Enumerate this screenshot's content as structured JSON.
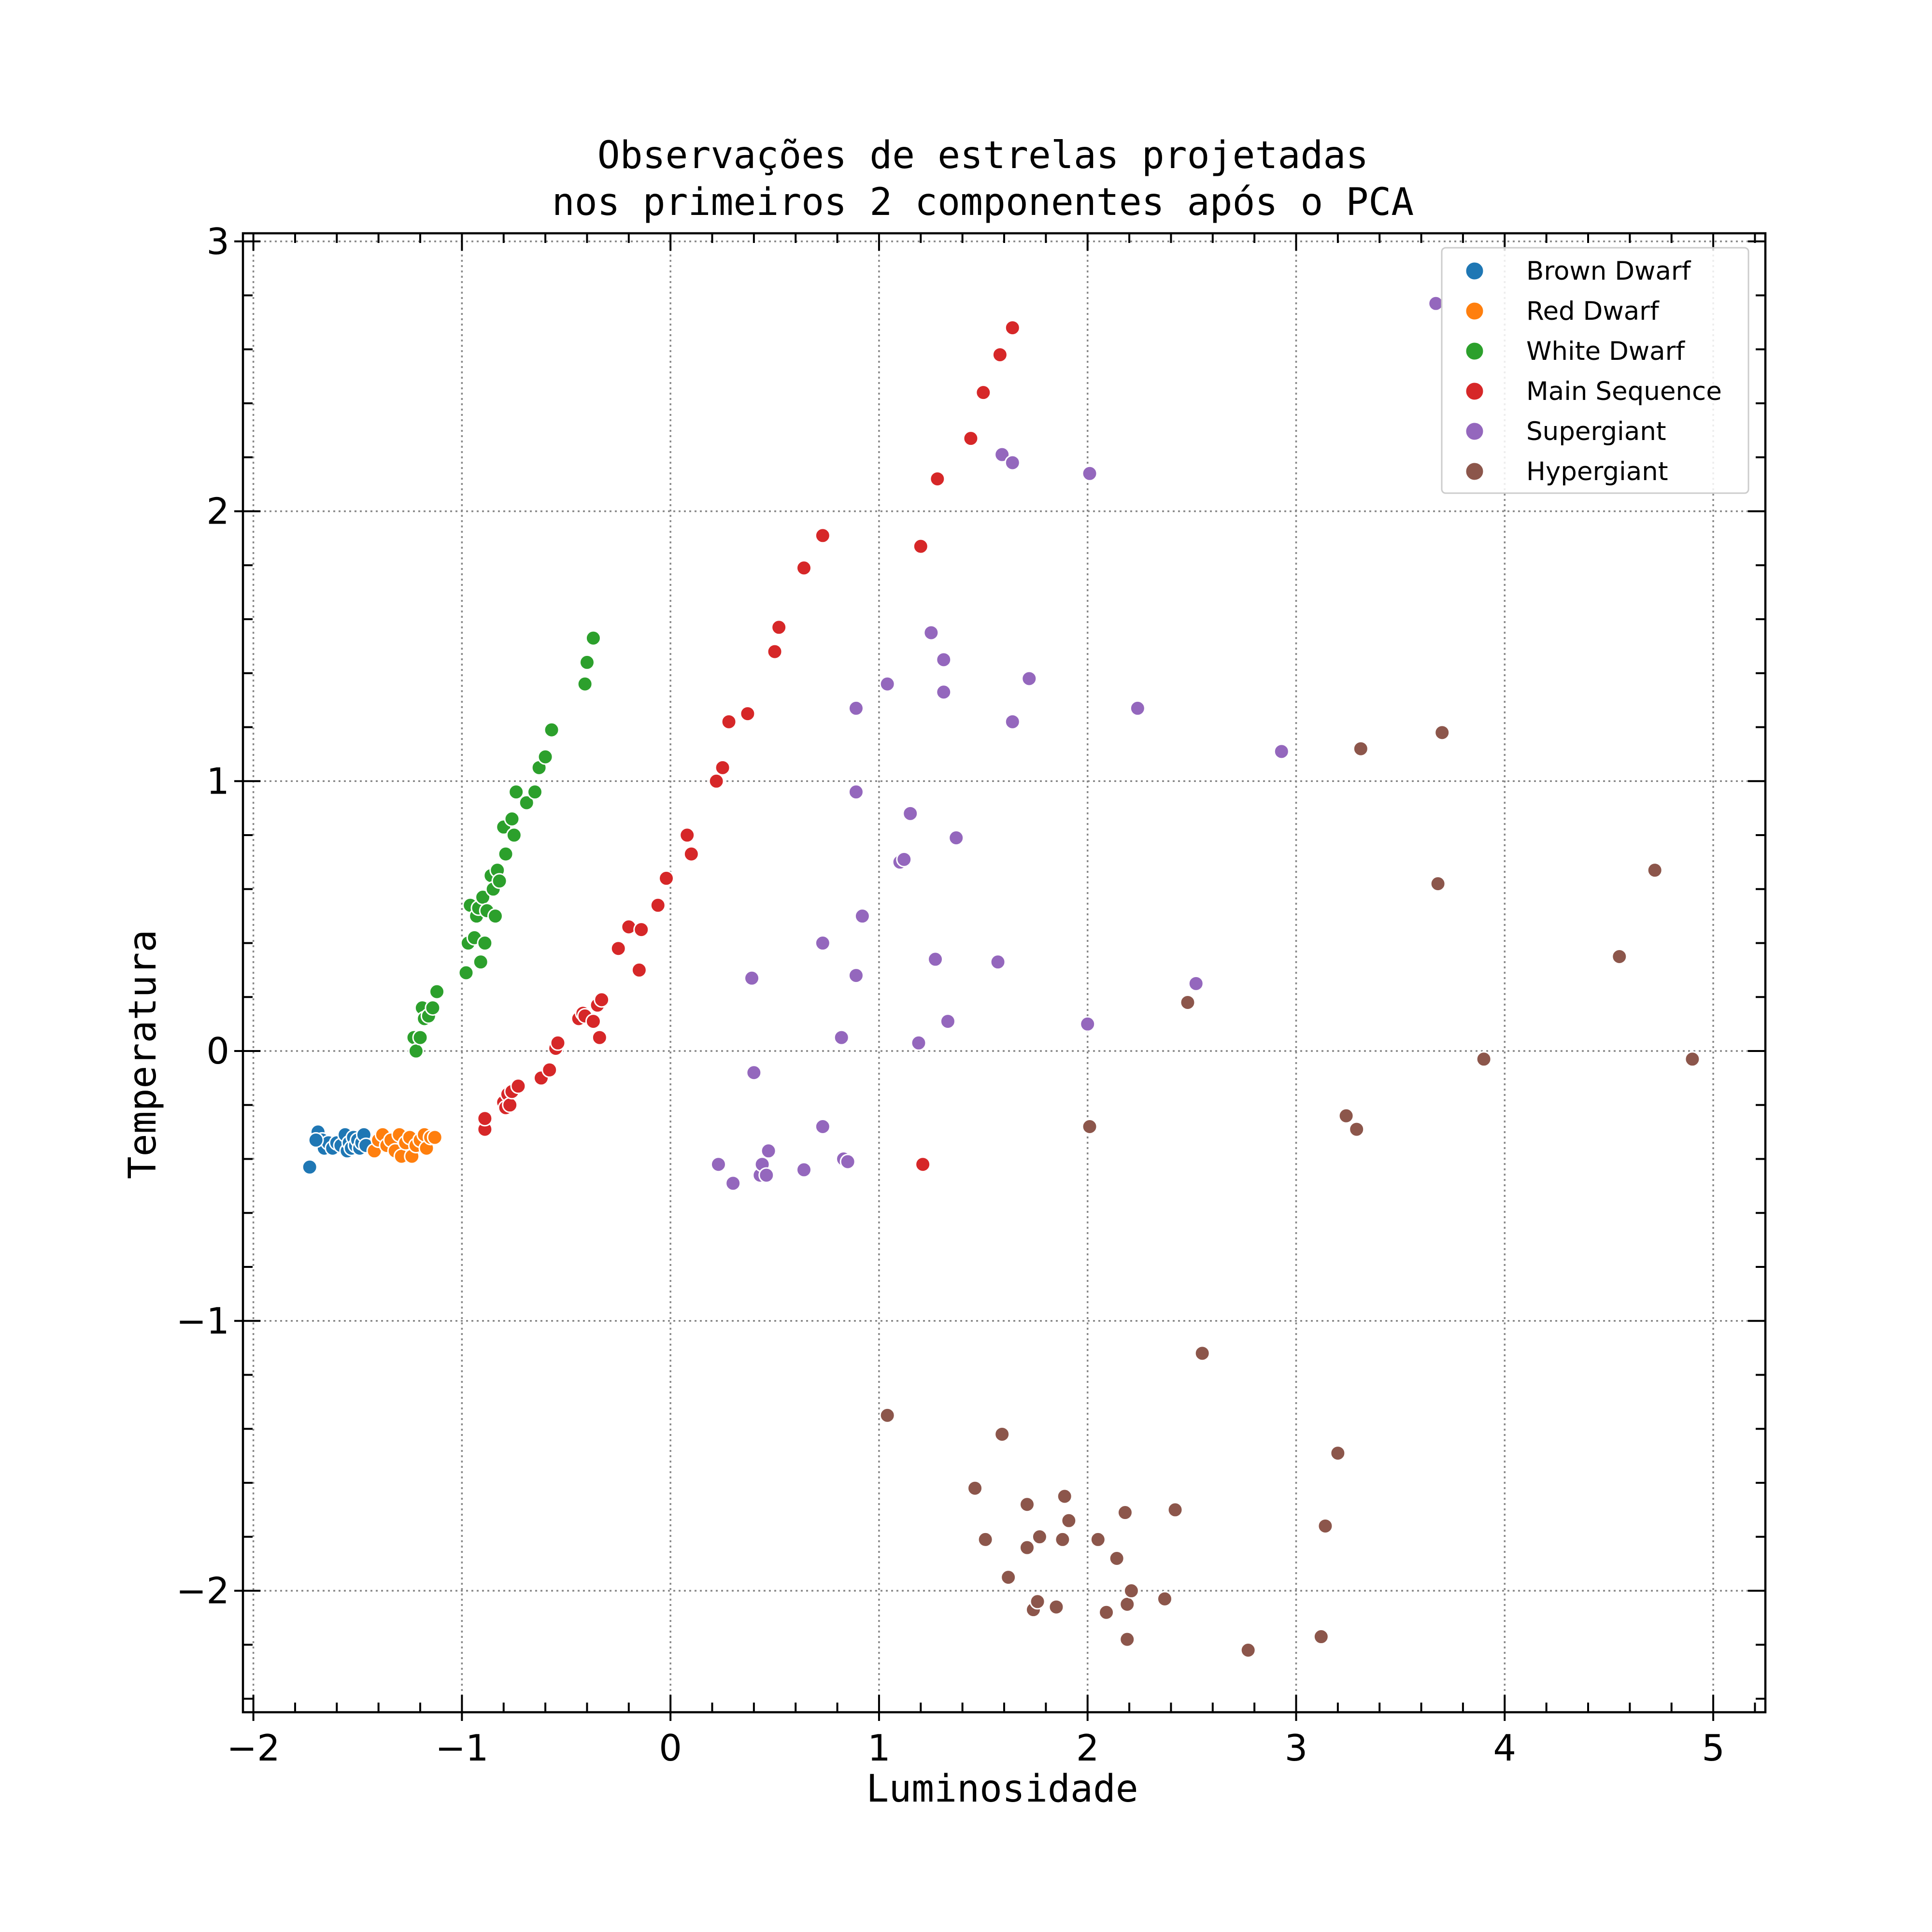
{
  "chart_data": {
    "type": "scatter",
    "title": "Observações de estrelas projetadas\nnos primeiros 2 componentes após o PCA",
    "xlabel": "Luminosidade",
    "ylabel": "Temperatura",
    "xlim": [
      -2.05,
      5.25
    ],
    "ylim": [
      -2.45,
      3.03
    ],
    "xticks": [
      -2,
      -1,
      0,
      1,
      2,
      3,
      4,
      5
    ],
    "xtick_labels": [
      "−2",
      "−1",
      "0",
      "1",
      "2",
      "3",
      "4",
      "5"
    ],
    "yticks": [
      -2,
      -1,
      0,
      1,
      2,
      3
    ],
    "ytick_labels": [
      "−2",
      "−1",
      "0",
      "1",
      "2",
      "3"
    ],
    "grid": true,
    "legend_position": "top-right",
    "series": [
      {
        "name": "Brown Dwarf",
        "color": "#1f77b4",
        "points": [
          [
            -1.73,
            -0.43
          ],
          [
            -1.69,
            -0.3
          ],
          [
            -1.67,
            -0.33
          ],
          [
            -1.66,
            -0.36
          ],
          [
            -1.64,
            -0.34
          ],
          [
            -1.62,
            -0.36
          ],
          [
            -1.6,
            -0.34
          ],
          [
            -1.58,
            -0.35
          ],
          [
            -1.56,
            -0.31
          ],
          [
            -1.55,
            -0.37
          ],
          [
            -1.54,
            -0.34
          ],
          [
            -1.53,
            -0.36
          ],
          [
            -1.52,
            -0.32
          ],
          [
            -1.51,
            -0.35
          ],
          [
            -1.5,
            -0.33
          ],
          [
            -1.49,
            -0.36
          ],
          [
            -1.48,
            -0.34
          ],
          [
            -1.47,
            -0.31
          ],
          [
            -1.46,
            -0.35
          ],
          [
            -1.7,
            -0.33
          ]
        ]
      },
      {
        "name": "Red Dwarf",
        "color": "#ff7f0e",
        "points": [
          [
            -1.42,
            -0.37
          ],
          [
            -1.4,
            -0.33
          ],
          [
            -1.38,
            -0.31
          ],
          [
            -1.36,
            -0.35
          ],
          [
            -1.34,
            -0.33
          ],
          [
            -1.32,
            -0.37
          ],
          [
            -1.3,
            -0.31
          ],
          [
            -1.29,
            -0.39
          ],
          [
            -1.27,
            -0.34
          ],
          [
            -1.25,
            -0.32
          ],
          [
            -1.24,
            -0.39
          ],
          [
            -1.22,
            -0.35
          ],
          [
            -1.2,
            -0.33
          ],
          [
            -1.18,
            -0.31
          ],
          [
            -1.17,
            -0.36
          ],
          [
            -1.15,
            -0.32
          ],
          [
            -1.13,
            -0.32
          ]
        ]
      },
      {
        "name": "White Dwarf",
        "color": "#2ca02c",
        "points": [
          [
            -1.23,
            0.05
          ],
          [
            -1.22,
            0.0
          ],
          [
            -1.2,
            0.05
          ],
          [
            -1.19,
            0.16
          ],
          [
            -1.18,
            0.12
          ],
          [
            -1.16,
            0.13
          ],
          [
            -1.14,
            0.16
          ],
          [
            -1.12,
            0.22
          ],
          [
            -0.98,
            0.29
          ],
          [
            -0.97,
            0.4
          ],
          [
            -0.96,
            0.54
          ],
          [
            -0.94,
            0.42
          ],
          [
            -0.93,
            0.5
          ],
          [
            -0.92,
            0.53
          ],
          [
            -0.91,
            0.33
          ],
          [
            -0.9,
            0.57
          ],
          [
            -0.89,
            0.4
          ],
          [
            -0.88,
            0.52
          ],
          [
            -0.86,
            0.65
          ],
          [
            -0.85,
            0.6
          ],
          [
            -0.84,
            0.5
          ],
          [
            -0.83,
            0.67
          ],
          [
            -0.82,
            0.63
          ],
          [
            -0.8,
            0.83
          ],
          [
            -0.79,
            0.73
          ],
          [
            -0.76,
            0.86
          ],
          [
            -0.75,
            0.8
          ],
          [
            -0.74,
            0.96
          ],
          [
            -0.69,
            0.92
          ],
          [
            -0.65,
            0.96
          ],
          [
            -0.63,
            1.05
          ],
          [
            -0.6,
            1.09
          ],
          [
            -0.57,
            1.19
          ],
          [
            -0.41,
            1.36
          ],
          [
            -0.4,
            1.44
          ],
          [
            -0.37,
            1.53
          ]
        ]
      },
      {
        "name": "Main Sequence",
        "color": "#d62728",
        "points": [
          [
            -0.89,
            -0.29
          ],
          [
            -0.89,
            -0.25
          ],
          [
            -0.8,
            -0.19
          ],
          [
            -0.79,
            -0.21
          ],
          [
            -0.78,
            -0.16
          ],
          [
            -0.77,
            -0.2
          ],
          [
            -0.76,
            -0.15
          ],
          [
            -0.73,
            -0.13
          ],
          [
            -0.62,
            -0.1
          ],
          [
            -0.58,
            -0.07
          ],
          [
            -0.55,
            0.01
          ],
          [
            -0.54,
            0.03
          ],
          [
            -0.44,
            0.12
          ],
          [
            -0.42,
            0.14
          ],
          [
            -0.41,
            0.13
          ],
          [
            -0.37,
            0.11
          ],
          [
            -0.35,
            0.17
          ],
          [
            -0.34,
            0.05
          ],
          [
            -0.33,
            0.19
          ],
          [
            -0.25,
            0.38
          ],
          [
            -0.2,
            0.46
          ],
          [
            -0.15,
            0.3
          ],
          [
            -0.14,
            0.45
          ],
          [
            -0.06,
            0.54
          ],
          [
            -0.02,
            0.64
          ],
          [
            0.08,
            0.8
          ],
          [
            0.1,
            0.73
          ],
          [
            0.22,
            1.0
          ],
          [
            0.25,
            1.05
          ],
          [
            0.28,
            1.22
          ],
          [
            0.37,
            1.25
          ],
          [
            0.5,
            1.48
          ],
          [
            0.52,
            1.57
          ],
          [
            0.64,
            1.79
          ],
          [
            0.73,
            1.91
          ],
          [
            1.2,
            1.87
          ],
          [
            1.21,
            -0.42
          ],
          [
            1.28,
            2.12
          ],
          [
            1.44,
            2.27
          ],
          [
            1.5,
            2.44
          ],
          [
            1.58,
            2.58
          ],
          [
            1.64,
            2.68
          ]
        ]
      },
      {
        "name": "Supergiant",
        "color": "#9467bd",
        "points": [
          [
            0.23,
            -0.42
          ],
          [
            0.3,
            -0.49
          ],
          [
            0.39,
            0.27
          ],
          [
            0.4,
            -0.08
          ],
          [
            0.43,
            -0.46
          ],
          [
            0.44,
            -0.42
          ],
          [
            0.46,
            -0.46
          ],
          [
            0.47,
            -0.37
          ],
          [
            0.64,
            -0.44
          ],
          [
            0.73,
            0.4
          ],
          [
            0.73,
            -0.28
          ],
          [
            0.82,
            0.05
          ],
          [
            0.83,
            -0.4
          ],
          [
            0.85,
            -0.41
          ],
          [
            0.89,
            0.96
          ],
          [
            0.89,
            0.28
          ],
          [
            0.89,
            1.27
          ],
          [
            0.92,
            0.5
          ],
          [
            1.04,
            1.36
          ],
          [
            1.1,
            0.7
          ],
          [
            1.12,
            0.71
          ],
          [
            1.15,
            0.88
          ],
          [
            1.19,
            0.03
          ],
          [
            1.25,
            1.55
          ],
          [
            1.27,
            0.34
          ],
          [
            1.31,
            1.45
          ],
          [
            1.31,
            1.33
          ],
          [
            1.33,
            0.11
          ],
          [
            1.37,
            0.79
          ],
          [
            1.57,
            0.33
          ],
          [
            1.59,
            2.21
          ],
          [
            1.64,
            2.18
          ],
          [
            1.64,
            1.22
          ],
          [
            1.72,
            1.38
          ],
          [
            2.0,
            0.1
          ],
          [
            2.01,
            2.14
          ],
          [
            2.24,
            1.27
          ],
          [
            2.52,
            0.25
          ],
          [
            2.93,
            1.11
          ],
          [
            3.67,
            2.77
          ]
        ]
      },
      {
        "name": "Hypergiant",
        "color": "#8c564b",
        "points": [
          [
            1.04,
            -1.35
          ],
          [
            1.46,
            -1.62
          ],
          [
            1.51,
            -1.81
          ],
          [
            1.59,
            -1.42
          ],
          [
            1.62,
            -1.95
          ],
          [
            1.71,
            -1.68
          ],
          [
            1.71,
            -1.84
          ],
          [
            1.74,
            -2.07
          ],
          [
            1.76,
            -2.04
          ],
          [
            1.77,
            -1.8
          ],
          [
            1.85,
            -2.06
          ],
          [
            1.88,
            -1.81
          ],
          [
            1.89,
            -1.65
          ],
          [
            1.91,
            -1.74
          ],
          [
            2.01,
            -0.28
          ],
          [
            2.05,
            -1.81
          ],
          [
            2.09,
            -2.08
          ],
          [
            2.14,
            -1.88
          ],
          [
            2.18,
            -1.71
          ],
          [
            2.19,
            -2.05
          ],
          [
            2.19,
            -2.18
          ],
          [
            2.21,
            -2.0
          ],
          [
            2.37,
            -2.03
          ],
          [
            2.42,
            -1.7
          ],
          [
            2.48,
            0.18
          ],
          [
            2.55,
            -1.12
          ],
          [
            2.77,
            -2.22
          ],
          [
            3.12,
            -2.17
          ],
          [
            3.14,
            -1.76
          ],
          [
            3.2,
            -1.49
          ],
          [
            3.24,
            -0.24
          ],
          [
            3.29,
            -0.29
          ],
          [
            3.31,
            1.12
          ],
          [
            3.68,
            0.62
          ],
          [
            3.7,
            1.18
          ],
          [
            3.9,
            -0.03
          ],
          [
            4.55,
            0.35
          ],
          [
            4.72,
            0.67
          ],
          [
            4.9,
            -0.03
          ]
        ]
      }
    ]
  }
}
